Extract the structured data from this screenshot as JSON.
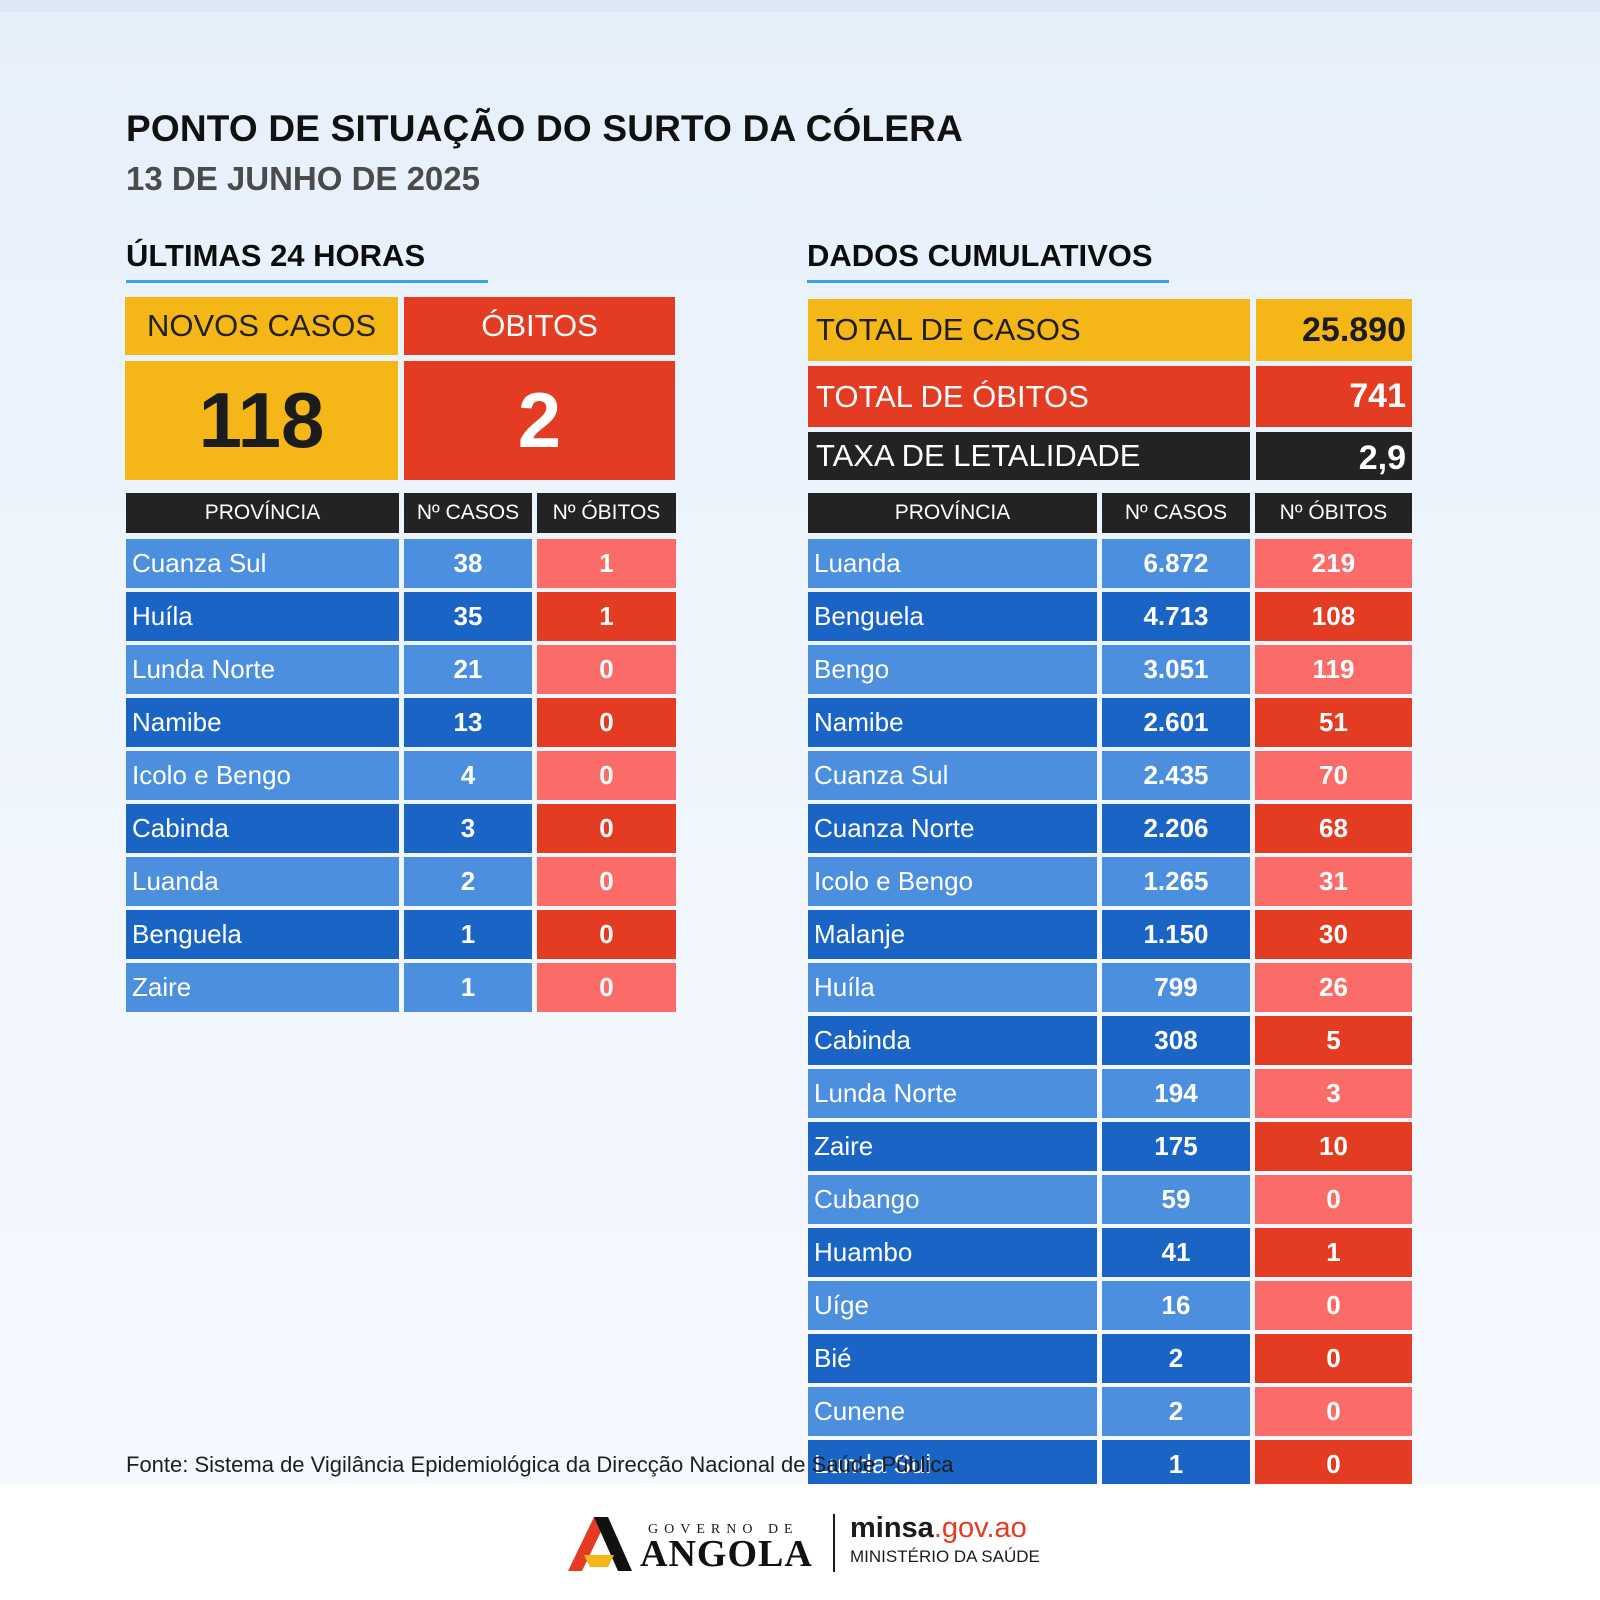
{
  "header": {
    "title": "PONTO DE SITUAÇÃO DO SURTO DA CÓLERA",
    "date": "13 DE JUNHO DE 2025"
  },
  "last24": {
    "heading": "ÚLTIMAS 24 HORAS",
    "new_cases_label": "NOVOS CASOS",
    "new_cases": "118",
    "deaths_label": "ÓBITOS",
    "deaths": "2",
    "columns": [
      "PROVÍNCIA",
      "Nº CASOS",
      "Nº ÓBITOS"
    ],
    "rows": [
      {
        "province": "Cuanza Sul",
        "cases": "38",
        "deaths": "1"
      },
      {
        "province": "Huíla",
        "cases": "35",
        "deaths": "1"
      },
      {
        "province": "Lunda Norte",
        "cases": "21",
        "deaths": "0"
      },
      {
        "province": "Namibe",
        "cases": "13",
        "deaths": "0"
      },
      {
        "province": "Icolo e Bengo",
        "cases": "4",
        "deaths": "0"
      },
      {
        "province": "Cabinda",
        "cases": "3",
        "deaths": "0"
      },
      {
        "province": "Luanda",
        "cases": "2",
        "deaths": "0"
      },
      {
        "province": "Benguela",
        "cases": "1",
        "deaths": "0"
      },
      {
        "province": "Zaire",
        "cases": "1",
        "deaths": "0"
      }
    ]
  },
  "cumulative": {
    "heading": "DADOS CUMULATIVOS",
    "total_cases_label": "TOTAL DE CASOS",
    "total_cases": "25.890",
    "total_deaths_label": "TOTAL DE ÓBITOS",
    "total_deaths": "741",
    "lethality_label": "TAXA DE LETALIDADE",
    "lethality": "2,9",
    "columns": [
      "PROVÍNCIA",
      "Nº CASOS",
      "Nº ÓBITOS"
    ],
    "rows": [
      {
        "province": "Luanda",
        "cases": "6.872",
        "deaths": "219"
      },
      {
        "province": "Benguela",
        "cases": "4.713",
        "deaths": "108"
      },
      {
        "province": "Bengo",
        "cases": "3.051",
        "deaths": "119"
      },
      {
        "province": "Namibe",
        "cases": "2.601",
        "deaths": "51"
      },
      {
        "province": "Cuanza Sul",
        "cases": "2.435",
        "deaths": "70"
      },
      {
        "province": "Cuanza Norte",
        "cases": "2.206",
        "deaths": "68"
      },
      {
        "province": "Icolo e Bengo",
        "cases": "1.265",
        "deaths": "31"
      },
      {
        "province": "Malanje",
        "cases": "1.150",
        "deaths": "30"
      },
      {
        "province": "Huíla",
        "cases": "799",
        "deaths": "26"
      },
      {
        "province": "Cabinda",
        "cases": "308",
        "deaths": "5"
      },
      {
        "province": "Lunda Norte",
        "cases": "194",
        "deaths": "3"
      },
      {
        "province": "Zaire",
        "cases": "175",
        "deaths": "10"
      },
      {
        "province": "Cubango",
        "cases": "59",
        "deaths": "0"
      },
      {
        "province": "Huambo",
        "cases": "41",
        "deaths": "1"
      },
      {
        "province": "Uíge",
        "cases": "16",
        "deaths": "0"
      },
      {
        "province": "Bié",
        "cases": "2",
        "deaths": "0"
      },
      {
        "province": "Cunene",
        "cases": "2",
        "deaths": "0"
      },
      {
        "province": "Lunda Sul",
        "cases": "1",
        "deaths": "0"
      }
    ]
  },
  "footer": {
    "source": "Fonte: Sistema de Vigilância Epidemiológica da Direcção Nacional de Saúde Pública",
    "gov_small": "GOVERNO DE",
    "gov_big": "ANGOLA",
    "minsa_bold": "minsa",
    "minsa_domain": ".gov.ao",
    "ministry": "MINISTÉRIO DA SAÚDE"
  },
  "colors": {
    "yellow": "#f5b618",
    "red": "#e33c22",
    "light_red": "#fb6c68",
    "blue": "#1a64c6",
    "light_blue": "#4b8fde",
    "dark": "#232323",
    "accent_line": "#3ba2e6"
  },
  "icons": {
    "logo": "governo-de-angola-logo-icon"
  }
}
